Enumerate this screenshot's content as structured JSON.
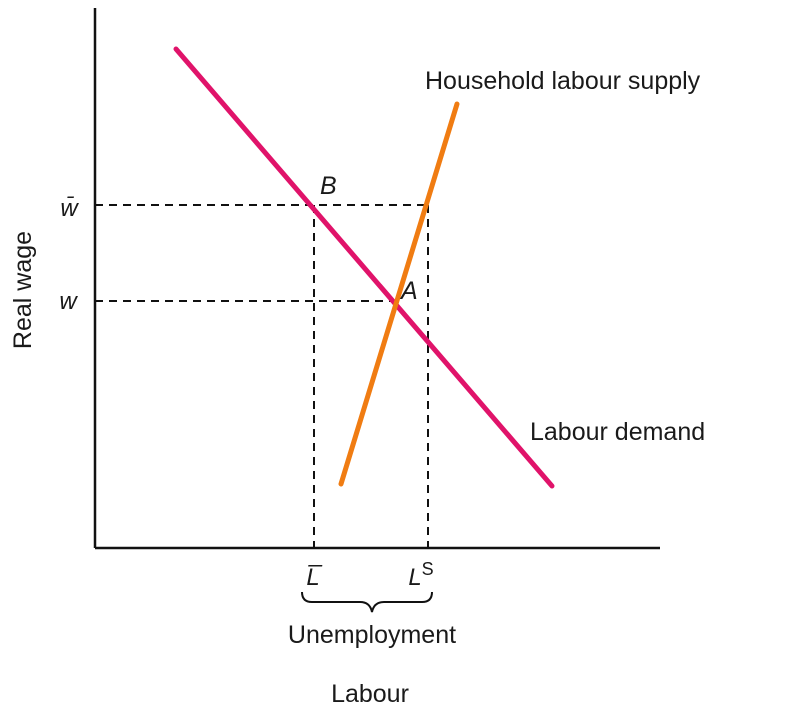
{
  "colors": {
    "demand": "#e0136a",
    "supply": "#f07c12",
    "axis": "#111111",
    "guide": "#111111"
  },
  "diagram": {
    "axis_labels": {
      "y": "Real wage",
      "x": "Labour"
    },
    "tick_labels": {
      "w_bar": "w̄",
      "w": "w",
      "L_bar": "L̅",
      "L_s_base": "L",
      "L_s_sup": "S"
    },
    "curve_labels": {
      "supply": "Household labour supply",
      "demand": "Labour demand"
    },
    "points": {
      "B": "B",
      "A": "A"
    },
    "annotation": "Unemployment"
  }
}
